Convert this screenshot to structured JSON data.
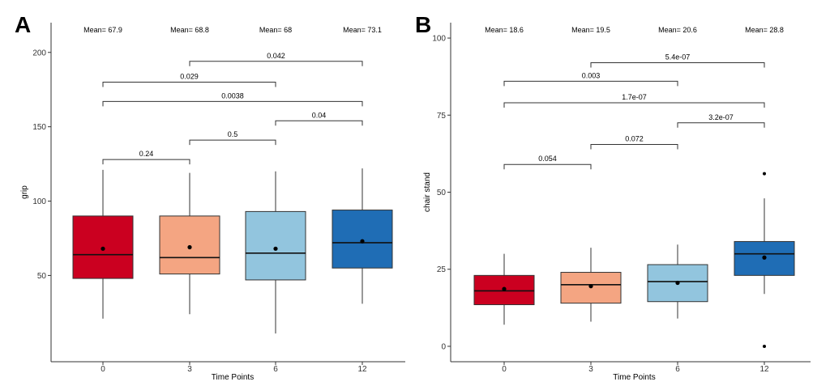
{
  "chart_data": [
    {
      "type": "boxplot",
      "panel_label": "A",
      "xlabel": "Time Points",
      "ylabel": "grip",
      "ylim": [
        -8,
        220
      ],
      "yticks": [
        50,
        100,
        150,
        200
      ],
      "categories": [
        "0",
        "3",
        "6",
        "12"
      ],
      "colors": [
        "#cb0020",
        "#f4a582",
        "#92c5de",
        "#1f6db5"
      ],
      "boxes": [
        {
          "whisker_low": 21,
          "q1": 48,
          "median": 64,
          "q3": 90,
          "whisker_high": 121,
          "mean": 68,
          "outliers": []
        },
        {
          "whisker_low": 24,
          "q1": 51,
          "median": 62,
          "q3": 90,
          "whisker_high": 119,
          "mean": 69,
          "outliers": []
        },
        {
          "whisker_low": 11,
          "q1": 47,
          "median": 65,
          "q3": 93,
          "whisker_high": 120,
          "mean": 68,
          "outliers": []
        },
        {
          "whisker_low": 31,
          "q1": 55,
          "median": 72,
          "q3": 94,
          "whisker_high": 122,
          "mean": 73,
          "outliers": []
        }
      ],
      "mean_labels": [
        "Mean= 67.9",
        "Mean= 68.8",
        "Mean= 68",
        "Mean= 73.1"
      ],
      "comparisons": [
        {
          "from": 0,
          "to": 1,
          "level": 128,
          "p": "0.24"
        },
        {
          "from": 1,
          "to": 2,
          "level": 141,
          "p": "0.5"
        },
        {
          "from": 2,
          "to": 3,
          "level": 154,
          "p": "0.04"
        },
        {
          "from": 0,
          "to": 3,
          "level": 167,
          "p": "0.0038"
        },
        {
          "from": 0,
          "to": 2,
          "level": 180,
          "p": "0.029"
        },
        {
          "from": 1,
          "to": 3,
          "level": 194,
          "p": "0.042"
        }
      ]
    },
    {
      "type": "boxplot",
      "panel_label": "B",
      "xlabel": "Time Points",
      "ylabel": "chair stand",
      "ylim": [
        -5,
        105
      ],
      "yticks": [
        0,
        25,
        50,
        75,
        100
      ],
      "categories": [
        "0",
        "3",
        "6",
        "12"
      ],
      "colors": [
        "#cb0020",
        "#f4a582",
        "#92c5de",
        "#1f6db5"
      ],
      "boxes": [
        {
          "whisker_low": 7,
          "q1": 13.5,
          "median": 18,
          "q3": 23,
          "whisker_high": 30,
          "mean": 18.6,
          "outliers": []
        },
        {
          "whisker_low": 8,
          "q1": 14,
          "median": 20,
          "q3": 24,
          "whisker_high": 32,
          "mean": 19.5,
          "outliers": []
        },
        {
          "whisker_low": 9,
          "q1": 14.5,
          "median": 21,
          "q3": 26.5,
          "whisker_high": 33,
          "mean": 20.6,
          "outliers": []
        },
        {
          "whisker_low": 17,
          "q1": 23,
          "median": 30,
          "q3": 34,
          "whisker_high": 48,
          "mean": 28.8,
          "outliers": [
            56,
            0
          ]
        }
      ],
      "mean_labels": [
        "Mean= 18.6",
        "Mean= 19.5",
        "Mean= 20.6",
        "Mean= 28.8"
      ],
      "comparisons": [
        {
          "from": 0,
          "to": 1,
          "level": 59,
          "p": "0.054"
        },
        {
          "from": 1,
          "to": 2,
          "level": 65.5,
          "p": "0.072"
        },
        {
          "from": 2,
          "to": 3,
          "level": 72.5,
          "p": "3.2e-07"
        },
        {
          "from": 0,
          "to": 3,
          "level": 79,
          "p": "1.7e-07"
        },
        {
          "from": 0,
          "to": 2,
          "level": 86,
          "p": "0.003"
        },
        {
          "from": 1,
          "to": 3,
          "level": 92,
          "p": "5.4e-07"
        }
      ]
    }
  ]
}
